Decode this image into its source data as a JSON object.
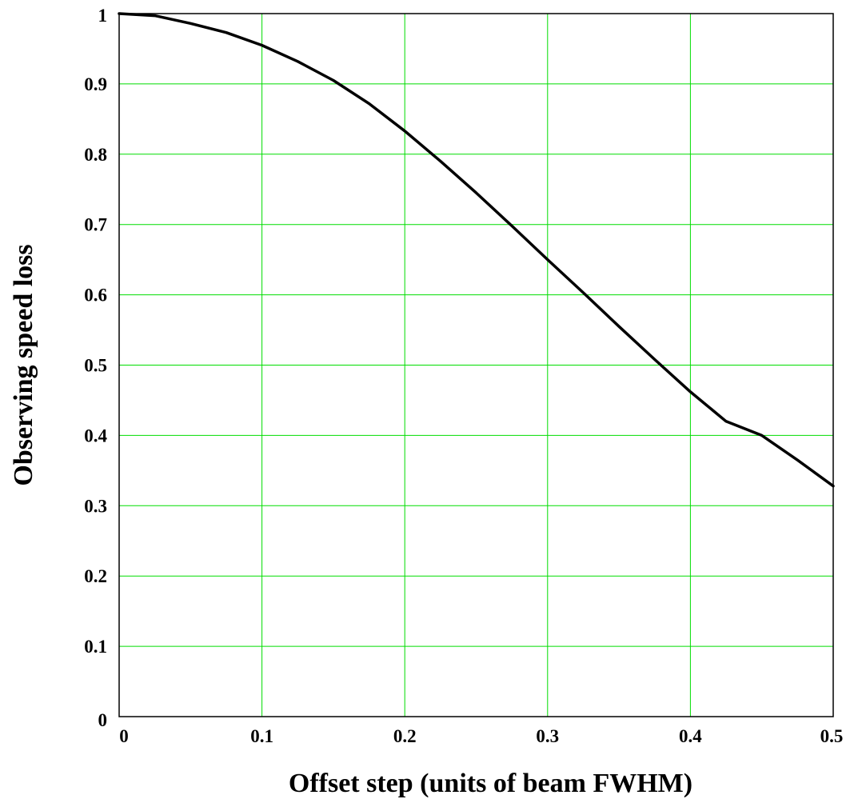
{
  "chart_data": {
    "type": "line",
    "title": "",
    "xlabel": "Offset step (units of beam FWHM)",
    "ylabel": "Observing speed loss",
    "xlim": [
      0,
      0.5
    ],
    "ylim": [
      0,
      1
    ],
    "x_ticks": [
      "0",
      "0.1",
      "0.2",
      "0.3",
      "0.4",
      "0.5"
    ],
    "y_ticks": [
      "0",
      "0.1",
      "0.2",
      "0.3",
      "0.4",
      "0.5",
      "0.6",
      "0.7",
      "0.8",
      "0.9",
      "1"
    ],
    "grid": true,
    "colors": {
      "grid": "#00dd00",
      "line": "#000000",
      "frame": "#000000"
    },
    "series": [
      {
        "x": [
          0,
          0.025,
          0.05,
          0.075,
          0.1,
          0.125,
          0.15,
          0.175,
          0.2,
          0.225,
          0.25,
          0.275,
          0.3,
          0.325,
          0.35,
          0.375,
          0.4,
          0.425,
          0.45,
          0.475,
          0.5
        ],
        "values": [
          1.0,
          0.997,
          0.986,
          0.973,
          0.955,
          0.932,
          0.905,
          0.872,
          0.833,
          0.79,
          0.745,
          0.698,
          0.65,
          0.603,
          0.555,
          0.508,
          0.462,
          0.42,
          0.4,
          0.365,
          0.328
        ]
      }
    ]
  }
}
